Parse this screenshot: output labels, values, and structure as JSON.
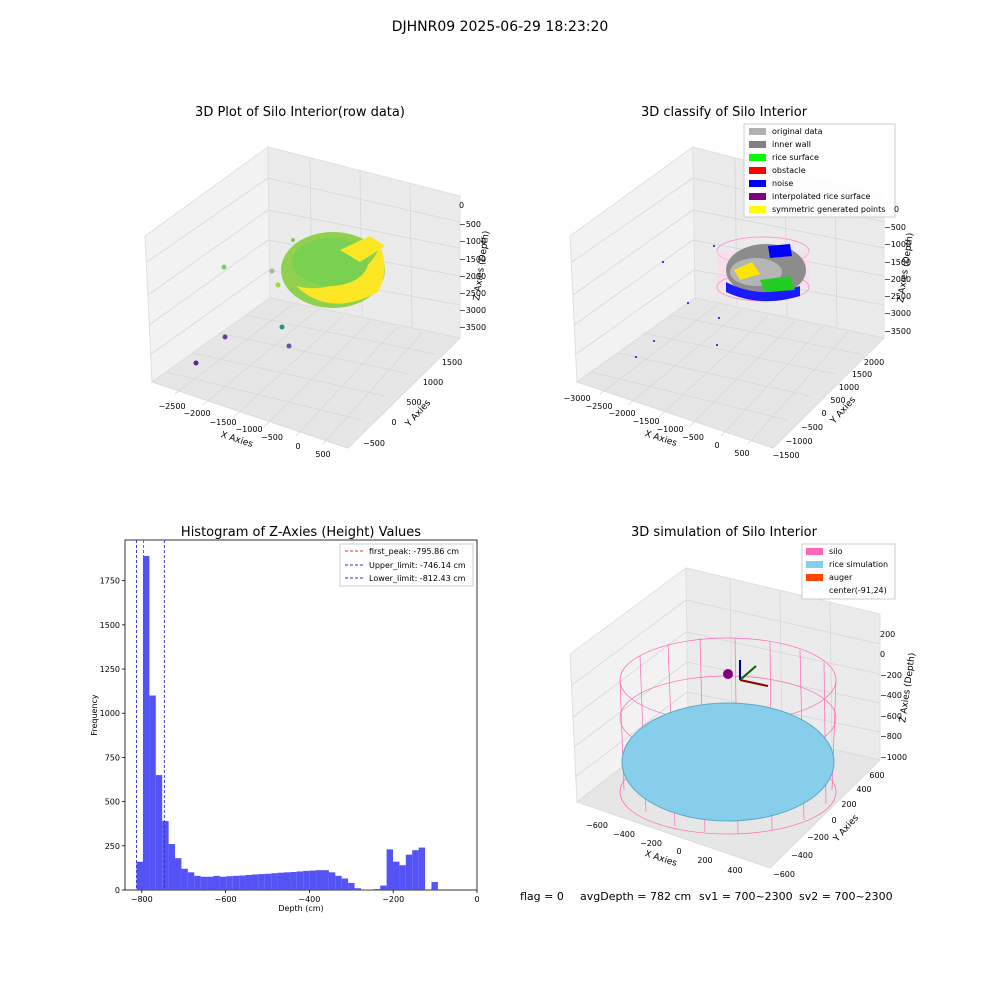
{
  "figure": {
    "suptitle": "DJHNR09 2025-06-29 18:23:20",
    "status": {
      "flag": "flag = 0",
      "avgDepth": "avgDepth = 782 cm",
      "sv1": "sv1 = 700~2300",
      "sv2": "sv2 = 700~2300"
    }
  },
  "colors": {
    "hist_bar": "#4444f5",
    "first_peak": "#e03030",
    "limit_line": "#2b2bd0",
    "pane": "#f2f2f2",
    "grid": "#d9d9d9",
    "silo": "#ff69b4",
    "rice_sim": "#87ceeb",
    "auger": "#ff4500",
    "original": "#b0b0b0",
    "inner_wall": "#808080",
    "rice_surface": "#00ff00",
    "obstacle": "#ff0000",
    "noise": "#0000ff",
    "interp_rice": "#800080",
    "symmetric": "#ffff00"
  },
  "chart_data": [
    {
      "type": "scatter",
      "title": "3D Plot of Silo Interior(row data)",
      "xlabel": "X Axies",
      "ylabel": "Y Axies",
      "zlabel": "Z Axies (Depth)",
      "x_ticks": [
        "−2500",
        "−2000",
        "−1500",
        "−1000",
        "−500",
        "0",
        "500"
      ],
      "y_ticks": [
        "−500",
        "0",
        "500",
        "1000",
        "1500"
      ],
      "z_ticks": [
        "0",
        "−500",
        "−1000",
        "−1500",
        "−2000",
        "−2500",
        "−3000",
        "−3500"
      ],
      "colormap": "viridis"
    },
    {
      "type": "scatter",
      "title": "3D classify of Silo Interior",
      "xlabel": "X Axies",
      "ylabel": "Y Axies",
      "zlabel": "Z Axies (Depth)",
      "x_ticks": [
        "−3000",
        "−2500",
        "−2000",
        "−1500",
        "−1000",
        "−500",
        "0",
        "500"
      ],
      "y_ticks": [
        "−1500",
        "−1000",
        "−500",
        "0",
        "500",
        "1000",
        "1500",
        "2000"
      ],
      "z_ticks": [
        "0",
        "−500",
        "−1000",
        "−1500",
        "−2000",
        "−2500",
        "−3000",
        "−3500"
      ],
      "legend": [
        {
          "label": "original data",
          "color": "#b0b0b0"
        },
        {
          "label": "inner wall",
          "color": "#808080"
        },
        {
          "label": "rice surface",
          "color": "#00ff00"
        },
        {
          "label": "obstacle",
          "color": "#ff0000"
        },
        {
          "label": "noise",
          "color": "#0000ff"
        },
        {
          "label": "interpolated rice surface",
          "color": "#800080"
        },
        {
          "label": "symmetric generated points",
          "color": "#ffff00"
        }
      ]
    },
    {
      "type": "bar",
      "title": "Histogram of Z-Axies (Height) Values",
      "xlabel": "Depth (cm)",
      "ylabel": "Frequency",
      "xlim": [
        -840,
        0
      ],
      "ylim": [
        0,
        1980
      ],
      "x_ticks": [
        -800,
        -600,
        -400,
        -200,
        0
      ],
      "x_tick_labels": [
        "−800",
        "−600",
        "−400",
        "−200",
        "0"
      ],
      "y_ticks": [
        0,
        250,
        500,
        750,
        1000,
        1250,
        1500,
        1750
      ],
      "y_tick_labels": [
        "0",
        "250",
        "500",
        "750",
        "1000",
        "1250",
        "1500",
        "1750"
      ],
      "bin_width": 15.3,
      "bin_start": -812.43,
      "values": [
        160,
        1890,
        1100,
        650,
        390,
        260,
        180,
        120,
        100,
        80,
        75,
        75,
        80,
        75,
        78,
        80,
        82,
        85,
        88,
        90,
        92,
        95,
        98,
        100,
        102,
        105,
        108,
        110,
        112,
        112,
        100,
        80,
        65,
        40,
        10,
        2,
        3,
        5,
        25,
        230,
        160,
        140,
        200,
        225,
        240,
        0,
        45
      ],
      "lines": [
        {
          "label": "first_peak: -795.86 cm",
          "x": -795.86,
          "color": "#e03030"
        },
        {
          "label": "Upper_limit: -746.14 cm",
          "x": -746.14,
          "color": "#2b2bd0"
        },
        {
          "label": "Lower_limit: -812.43 cm",
          "x": -812.43,
          "color": "#2b2bd0"
        }
      ]
    },
    {
      "type": "scatter",
      "title": "3D simulation of Silo Interior",
      "xlabel": "X Axies",
      "ylabel": "Y Axies",
      "zlabel": "Z Axies (Depth)",
      "x_ticks": [
        "−600",
        "−400",
        "−200",
        "0",
        "200",
        "400"
      ],
      "y_ticks": [
        "−600",
        "−400",
        "−200",
        "0",
        "200",
        "400",
        "600"
      ],
      "z_ticks": [
        "200",
        "0",
        "−200",
        "−400",
        "−600",
        "−800",
        "−1000"
      ],
      "legend": [
        {
          "label": "silo",
          "color": "#ff69b4"
        },
        {
          "label": "rice simulation",
          "color": "#87ceeb"
        },
        {
          "label": "auger",
          "color": "#ff4500"
        },
        {
          "label": "center(-91,24)",
          "color": ""
        }
      ]
    }
  ]
}
